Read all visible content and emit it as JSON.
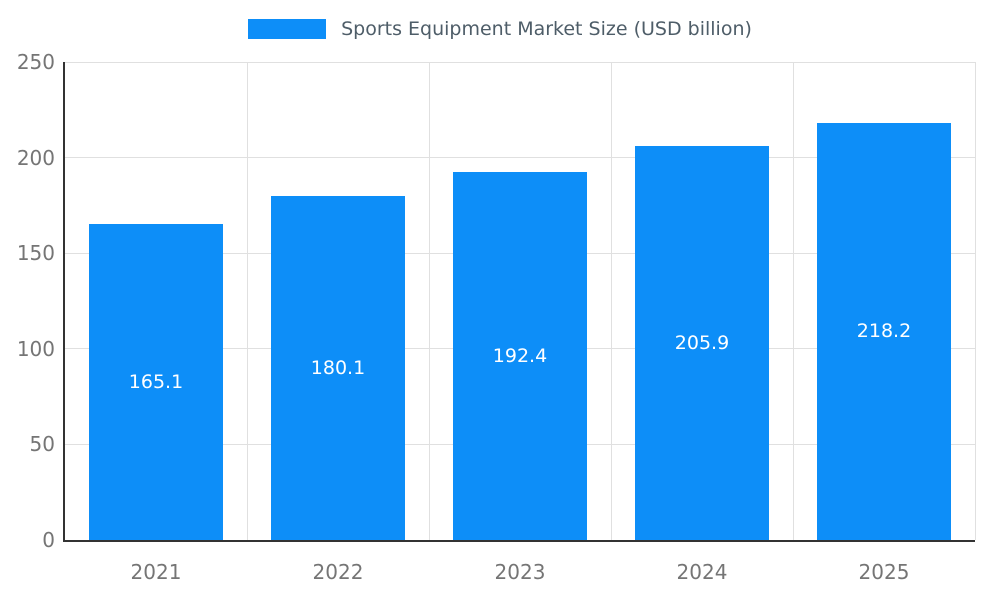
{
  "chart_data": {
    "type": "bar",
    "title": "Sports Equipment Market Size (USD billion)",
    "categories": [
      "2021",
      "2022",
      "2023",
      "2024",
      "2025"
    ],
    "values": [
      165.1,
      180.1,
      192.4,
      205.9,
      218.2
    ],
    "value_labels": [
      "165.1",
      "180.1",
      "192.4",
      "205.9",
      "218.2"
    ],
    "xlabel": "",
    "ylabel": "",
    "ylim": [
      0,
      250
    ],
    "yticks": [
      0,
      50,
      100,
      150,
      200,
      250
    ],
    "grid": true,
    "legend_position": "top",
    "colors": {
      "bar": "#0d8ef8",
      "value_label": "#ffffff",
      "gridline": "#e0e0e0",
      "axis_line": "#333333",
      "tick_label": "#757575",
      "legend_text": "#4e5d68",
      "background": "#ffffff"
    }
  }
}
